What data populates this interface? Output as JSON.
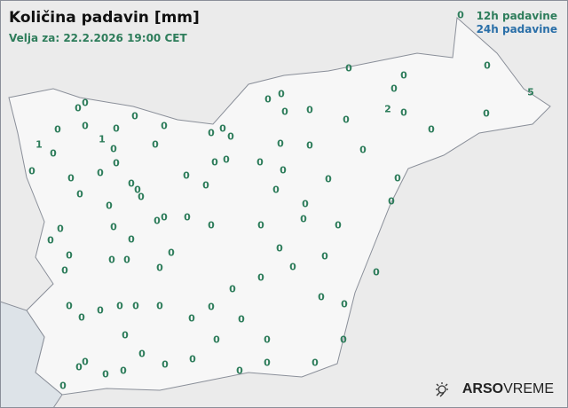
{
  "title": "Količina padavin [mm]",
  "subtitle": "Velja za: 22.2.2026 19:00 CET",
  "legend": {
    "label_12h": "12h padavine",
    "label_24h": "24h padavine",
    "color_12h": "#2e7d5b",
    "color_24h": "#2a6fa8"
  },
  "brand": {
    "name_bold": "ARSO",
    "name_regular": "VREME",
    "icon": "sun-cloud-icon"
  },
  "stations": [
    [
      519,
      17,
      "0"
    ],
    [
      549,
      74,
      "0"
    ],
    [
      598,
      104,
      "5"
    ],
    [
      548,
      128,
      "0"
    ],
    [
      393,
      77,
      "0"
    ],
    [
      455,
      85,
      "0"
    ],
    [
      444,
      100,
      "0"
    ],
    [
      317,
      106,
      "0"
    ],
    [
      302,
      112,
      "0"
    ],
    [
      321,
      126,
      "0"
    ],
    [
      349,
      124,
      "0"
    ],
    [
      437,
      123,
      "2"
    ],
    [
      455,
      127,
      "0"
    ],
    [
      390,
      135,
      "0"
    ],
    [
      486,
      146,
      "0"
    ],
    [
      96,
      116,
      "0"
    ],
    [
      88,
      122,
      "0"
    ],
    [
      152,
      131,
      "0"
    ],
    [
      65,
      146,
      "0"
    ],
    [
      96,
      142,
      "0"
    ],
    [
      131,
      145,
      "0"
    ],
    [
      185,
      142,
      "0"
    ],
    [
      238,
      150,
      "0"
    ],
    [
      251,
      145,
      "0"
    ],
    [
      260,
      154,
      "0"
    ],
    [
      44,
      163,
      "1"
    ],
    [
      115,
      157,
      "1"
    ],
    [
      60,
      173,
      "0"
    ],
    [
      128,
      168,
      "0"
    ],
    [
      175,
      163,
      "0"
    ],
    [
      316,
      162,
      "0"
    ],
    [
      349,
      164,
      "0"
    ],
    [
      409,
      169,
      "0"
    ],
    [
      131,
      184,
      "0"
    ],
    [
      242,
      183,
      "0"
    ],
    [
      255,
      180,
      "0"
    ],
    [
      293,
      183,
      "0"
    ],
    [
      36,
      193,
      "0"
    ],
    [
      80,
      201,
      "0"
    ],
    [
      113,
      195,
      "0"
    ],
    [
      210,
      198,
      "0"
    ],
    [
      319,
      192,
      "0"
    ],
    [
      370,
      202,
      "0"
    ],
    [
      448,
      201,
      "0"
    ],
    [
      148,
      207,
      "0"
    ],
    [
      155,
      214,
      "0"
    ],
    [
      159,
      222,
      "0"
    ],
    [
      232,
      209,
      "0"
    ],
    [
      311,
      214,
      "0"
    ],
    [
      90,
      219,
      "0"
    ],
    [
      123,
      232,
      "0"
    ],
    [
      441,
      227,
      "0"
    ],
    [
      344,
      230,
      "0"
    ],
    [
      185,
      245,
      "0"
    ],
    [
      177,
      249,
      "0"
    ],
    [
      211,
      245,
      "0"
    ],
    [
      238,
      254,
      "0"
    ],
    [
      294,
      254,
      "0"
    ],
    [
      342,
      247,
      "0"
    ],
    [
      381,
      254,
      "0"
    ],
    [
      128,
      256,
      "0"
    ],
    [
      68,
      258,
      "0"
    ],
    [
      148,
      270,
      "0"
    ],
    [
      57,
      271,
      "0"
    ],
    [
      78,
      288,
      "0"
    ],
    [
      193,
      285,
      "0"
    ],
    [
      315,
      280,
      "0"
    ],
    [
      126,
      293,
      "0"
    ],
    [
      143,
      293,
      "0"
    ],
    [
      73,
      305,
      "0"
    ],
    [
      180,
      302,
      "0"
    ],
    [
      366,
      289,
      "0"
    ],
    [
      330,
      301,
      "0"
    ],
    [
      424,
      307,
      "0"
    ],
    [
      294,
      313,
      "0"
    ],
    [
      262,
      326,
      "0"
    ],
    [
      78,
      345,
      "0"
    ],
    [
      92,
      358,
      "0"
    ],
    [
      135,
      345,
      "0"
    ],
    [
      153,
      345,
      "0"
    ],
    [
      180,
      345,
      "0"
    ],
    [
      362,
      335,
      "0"
    ],
    [
      238,
      346,
      "0"
    ],
    [
      388,
      343,
      "0"
    ],
    [
      113,
      350,
      "0"
    ],
    [
      216,
      359,
      "0"
    ],
    [
      272,
      360,
      "0"
    ],
    [
      141,
      378,
      "0"
    ],
    [
      244,
      383,
      "0"
    ],
    [
      301,
      383,
      "0"
    ],
    [
      387,
      383,
      "0"
    ],
    [
      160,
      399,
      "0"
    ],
    [
      217,
      405,
      "0"
    ],
    [
      301,
      409,
      "0"
    ],
    [
      355,
      409,
      "0"
    ],
    [
      96,
      408,
      "0"
    ],
    [
      89,
      414,
      "0"
    ],
    [
      186,
      411,
      "0"
    ],
    [
      139,
      418,
      "0"
    ],
    [
      119,
      422,
      "0"
    ],
    [
      270,
      418,
      "0"
    ],
    [
      71,
      435,
      "0"
    ]
  ]
}
